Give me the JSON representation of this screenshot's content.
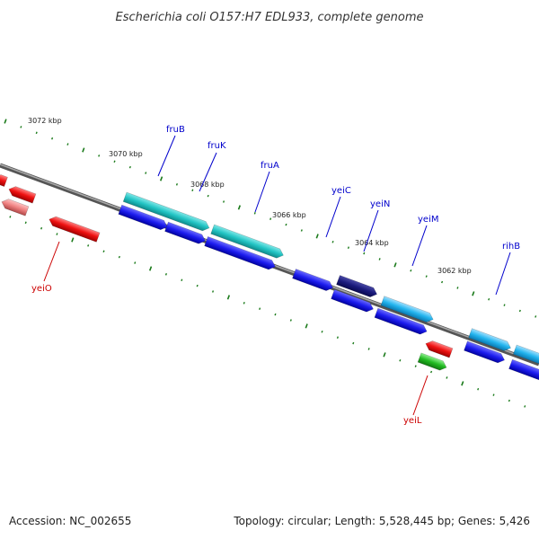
{
  "title": "Escherichia coli O157:H7 EDL933, complete genome",
  "footer": {
    "accession": "Accession: NC_002655",
    "summary": "Topology: circular; Length: 5,528,445 bp; Genes: 5,426"
  },
  "colors": {
    "backbone": "#888888",
    "tick": "#1a7a1a",
    "label_forward": "#0000cc",
    "label_reverse": "#cc0000"
  },
  "ruler": [
    {
      "label": "3072 kbp"
    },
    {
      "label": "3070 kbp"
    },
    {
      "label": "3068 kbp"
    },
    {
      "label": "3066 kbp"
    },
    {
      "label": "3064 kbp"
    },
    {
      "label": "3062 kbp"
    }
  ],
  "gene_labels": [
    {
      "name": "fruB",
      "strand": "forward"
    },
    {
      "name": "fruK",
      "strand": "forward"
    },
    {
      "name": "fruA",
      "strand": "forward"
    },
    {
      "name": "yeiC",
      "strand": "forward"
    },
    {
      "name": "yeiN",
      "strand": "forward"
    },
    {
      "name": "yeiM",
      "strand": "forward"
    },
    {
      "name": "rihB",
      "strand": "forward"
    },
    {
      "name": "yeiO",
      "strand": "reverse"
    },
    {
      "name": "yeiL",
      "strand": "reverse"
    }
  ]
}
